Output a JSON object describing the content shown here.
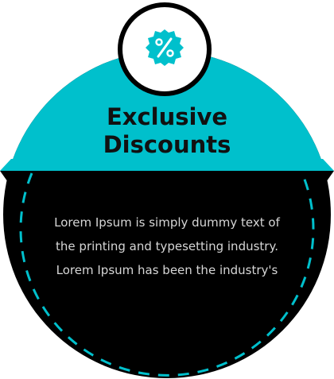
{
  "card": {
    "title_line1": "Exclusive",
    "title_line2": "Discounts",
    "description": "Lorem Ipsum is simply dummy text of the printing and typesetting industry. Lorem Ipsum has been the industry's"
  },
  "icon": {
    "name": "percent-badge-icon",
    "symbol": "%"
  },
  "colors": {
    "accent": "#00C0CC",
    "dark": "#000000",
    "icon_ring": "#ffffff",
    "dashed_border": "#00C0CC",
    "title_text": "#111111",
    "body_text": "#d6d6d6"
  }
}
